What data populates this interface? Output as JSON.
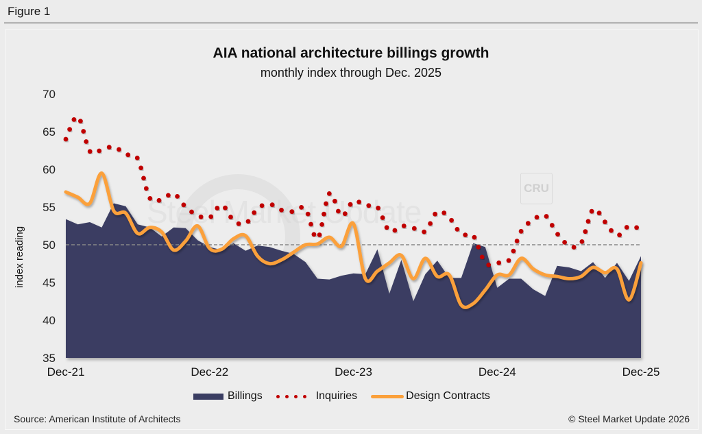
{
  "figure_label": "Figure 1",
  "source": "Source: American Institute of Architects",
  "copyright": "© Steel Market Update 2026",
  "watermark": {
    "brand": "Steel Market Update",
    "badge": "CRU"
  },
  "legend": {
    "billings": "Billings",
    "inquiries": "Inquiries",
    "design_contracts": "Design Contracts"
  },
  "colors": {
    "billings": "#3a3d62",
    "inquiries": "#c00000",
    "design_contracts": "#fba03a",
    "reference_line": "#888888"
  },
  "chart_data": {
    "type": "area",
    "title": "AIA national architecture billings growth",
    "subtitle": "monthly index through Dec. 2025",
    "xlabel": "",
    "ylabel": "index reading",
    "ylim": [
      35,
      70
    ],
    "yticks": [
      35,
      40,
      45,
      50,
      55,
      60,
      65,
      70
    ],
    "xticks": [
      "Dec-21",
      "Dec-22",
      "Dec-23",
      "Dec-24",
      "Dec-25"
    ],
    "x_start": "Dec-21",
    "x_end": "Dec-25",
    "frequency": "monthly",
    "reference_line": 50,
    "grid": false,
    "legend_position": "bottom",
    "series": [
      {
        "name": "Billings",
        "type": "area",
        "values": [
          53.4,
          52.7,
          53.0,
          52.3,
          55.5,
          55.1,
          52.7,
          52.3,
          51.1,
          52.3,
          52.2,
          50.6,
          49.7,
          49.3,
          50.2,
          49.2,
          49.9,
          49.7,
          49.2,
          48.8,
          47.7,
          45.5,
          45.4,
          45.9,
          46.2,
          46.1,
          49.4,
          43.5,
          48.0,
          42.5,
          46.1,
          47.9,
          45.6,
          45.6,
          50.2,
          49.7,
          44.3,
          45.5,
          45.5,
          44.1,
          43.2,
          47.2,
          47.0,
          46.5,
          47.7,
          45.6,
          47.6,
          45.2,
          48.5
        ]
      },
      {
        "name": "Inquiries",
        "type": "dotted-line",
        "values": [
          64.0,
          67.0,
          62.4,
          62.6,
          63.0,
          62.0,
          61.4,
          56.2,
          56.0,
          56.8,
          55.0,
          53.9,
          53.6,
          55.3,
          53.2,
          52.8,
          54.8,
          55.4,
          54.6,
          54.4,
          54.8,
          50.8,
          56.8,
          53.8,
          55.8,
          55.2,
          55.0,
          51.8,
          52.5,
          52.2,
          51.8,
          54.4,
          53.6,
          51.4,
          51.2,
          47.6,
          47.6,
          48.0,
          51.8,
          53.3,
          53.9,
          51.5,
          49.9,
          50.2,
          54.7,
          53.0,
          51.2,
          52.5,
          52.0
        ]
      },
      {
        "name": "Design Contracts",
        "type": "smooth-line",
        "values": [
          57.0,
          56.3,
          55.5,
          59.5,
          54.5,
          54.2,
          51.5,
          52.3,
          51.7,
          49.3,
          50.5,
          52.5,
          49.5,
          49.4,
          50.8,
          51.2,
          48.5,
          47.5,
          48.0,
          49.0,
          50.0,
          50.1,
          51.0,
          49.8,
          52.8,
          45.5,
          46.5,
          47.6,
          48.6,
          45.5,
          48.2,
          45.8,
          46.0,
          42.0,
          42.2,
          44.0,
          46.0,
          46.0,
          48.2,
          46.8,
          46.0,
          45.8,
          45.5,
          45.8,
          47.0,
          46.3,
          46.8,
          42.7,
          47.6
        ]
      }
    ]
  }
}
